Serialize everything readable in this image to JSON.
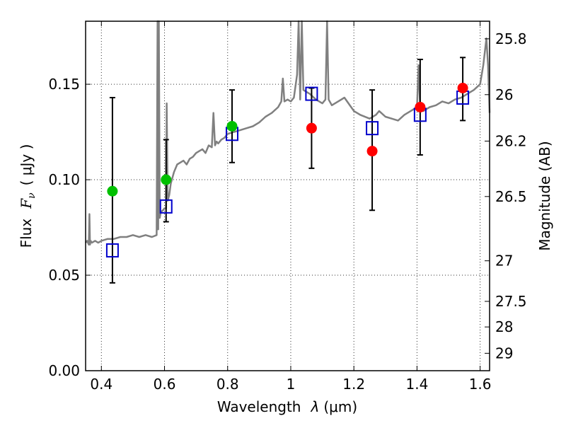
{
  "chart_data": {
    "type": "scatter",
    "xlabel_text": "Wavelength",
    "xlabel_symbol": "λ",
    "xlabel_unit": "(μm)",
    "ylabel_text": "Flux",
    "ylabel_symbol": "F",
    "ylabel_sub": "ν",
    "ylabel_unit": "( μJy )",
    "y2label": "Magnitude (AB)",
    "xlim": [
      0.35,
      1.63
    ],
    "ylim": [
      0.0,
      0.183
    ],
    "x_ticks": [
      0.4,
      0.6,
      0.8,
      1.0,
      1.2,
      1.4,
      1.6
    ],
    "x_tick_labels": [
      "0.4",
      "0.6",
      "0.8",
      "1",
      "1.2",
      "1.4",
      "1.6"
    ],
    "y_ticks": [
      0.0,
      0.05,
      0.1,
      0.15
    ],
    "y_tick_labels": [
      "0.00",
      "0.05",
      "0.10",
      "0.15"
    ],
    "mag_ticks": [
      25.8,
      26,
      26.2,
      26.5,
      27,
      27.5,
      28,
      29
    ],
    "mag_tick_labels": [
      "25.8",
      "26",
      "26.2",
      "26.5",
      "27",
      "27.5",
      "28",
      "29"
    ],
    "grid": true,
    "colors": {
      "model": "#808080",
      "detection": "#00c000",
      "nondetection": "#ff0000",
      "model_phot": "#0000cc",
      "errorbar": "#000000"
    },
    "model_spectrum": {
      "name": "SED model",
      "x": [
        0.35,
        0.355,
        0.36,
        0.362,
        0.364,
        0.366,
        0.37,
        0.38,
        0.39,
        0.4,
        0.42,
        0.44,
        0.46,
        0.48,
        0.5,
        0.52,
        0.54,
        0.56,
        0.575,
        0.578,
        0.58,
        0.582,
        0.585,
        0.588,
        0.595,
        0.6,
        0.605,
        0.607,
        0.61,
        0.615,
        0.62,
        0.63,
        0.64,
        0.65,
        0.66,
        0.67,
        0.68,
        0.69,
        0.7,
        0.71,
        0.72,
        0.73,
        0.74,
        0.75,
        0.755,
        0.76,
        0.765,
        0.77,
        0.78,
        0.79,
        0.8,
        0.82,
        0.84,
        0.86,
        0.88,
        0.9,
        0.92,
        0.94,
        0.96,
        0.97,
        0.975,
        0.98,
        0.99,
        1.0,
        1.01,
        1.02,
        1.025,
        1.03,
        1.035,
        1.04,
        1.05,
        1.06,
        1.08,
        1.1,
        1.11,
        1.115,
        1.12,
        1.13,
        1.15,
        1.17,
        1.2,
        1.22,
        1.25,
        1.27,
        1.28,
        1.3,
        1.32,
        1.34,
        1.36,
        1.38,
        1.4,
        1.405,
        1.41,
        1.42,
        1.44,
        1.46,
        1.48,
        1.5,
        1.52,
        1.54,
        1.56,
        1.58,
        1.6,
        1.61,
        1.62,
        1.625,
        1.63
      ],
      "y": [
        0.067,
        0.068,
        0.066,
        0.082,
        0.066,
        0.068,
        0.067,
        0.068,
        0.067,
        0.068,
        0.069,
        0.069,
        0.07,
        0.07,
        0.071,
        0.07,
        0.071,
        0.07,
        0.071,
        0.183,
        0.074,
        0.183,
        0.08,
        0.083,
        0.084,
        0.085,
        0.085,
        0.14,
        0.089,
        0.092,
        0.098,
        0.104,
        0.108,
        0.109,
        0.11,
        0.108,
        0.111,
        0.112,
        0.114,
        0.115,
        0.116,
        0.114,
        0.118,
        0.117,
        0.135,
        0.118,
        0.12,
        0.119,
        0.121,
        0.122,
        0.124,
        0.125,
        0.126,
        0.127,
        0.128,
        0.13,
        0.133,
        0.135,
        0.138,
        0.141,
        0.153,
        0.141,
        0.142,
        0.141,
        0.143,
        0.155,
        0.183,
        0.142,
        0.183,
        0.147,
        0.146,
        0.145,
        0.142,
        0.14,
        0.142,
        0.183,
        0.142,
        0.139,
        0.141,
        0.143,
        0.136,
        0.134,
        0.132,
        0.134,
        0.136,
        0.133,
        0.132,
        0.131,
        0.134,
        0.136,
        0.138,
        0.16,
        0.137,
        0.136,
        0.138,
        0.139,
        0.141,
        0.14,
        0.142,
        0.143,
        0.145,
        0.147,
        0.15,
        0.16,
        0.174,
        0.16,
        0.135
      ]
    },
    "detections": [
      {
        "x": 0.435,
        "y": 0.094,
        "yerr_lo": 0.046,
        "yerr_hi": 0.143
      },
      {
        "x": 0.605,
        "y": 0.1,
        "yerr_lo": 0.078,
        "yerr_hi": 0.121
      },
      {
        "x": 0.814,
        "y": 0.128,
        "yerr_lo": 0.109,
        "yerr_hi": 0.147
      }
    ],
    "nondetections": [
      {
        "x": 1.066,
        "y": 0.127,
        "yerr_lo": 0.106,
        "yerr_hi": 0.148
      },
      {
        "x": 1.258,
        "y": 0.115,
        "yerr_lo": 0.084,
        "yerr_hi": 0.147
      },
      {
        "x": 1.41,
        "y": 0.138,
        "yerr_lo": 0.113,
        "yerr_hi": 0.163
      },
      {
        "x": 1.545,
        "y": 0.148,
        "yerr_lo": 0.131,
        "yerr_hi": 0.164
      }
    ],
    "model_photometry": [
      {
        "x": 0.435,
        "y": 0.063
      },
      {
        "x": 0.605,
        "y": 0.086
      },
      {
        "x": 0.814,
        "y": 0.124
      },
      {
        "x": 1.066,
        "y": 0.145
      },
      {
        "x": 1.258,
        "y": 0.127
      },
      {
        "x": 1.41,
        "y": 0.134
      },
      {
        "x": 1.545,
        "y": 0.143
      }
    ]
  }
}
